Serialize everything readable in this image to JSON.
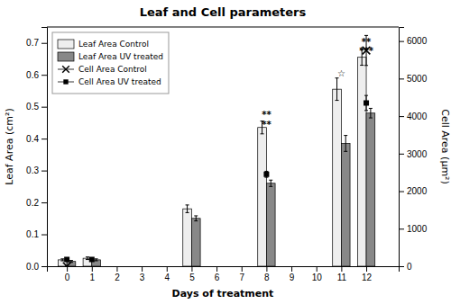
{
  "chart_data": {
    "type": "bar",
    "title": "Leaf and Cell parameters",
    "xlabel": "Days of treatment",
    "ylabel": "Leaf Area (cm²)",
    "y2label": "Cell Area (μm²)",
    "x": [
      0,
      1,
      5,
      8,
      11,
      12
    ],
    "series": [
      {
        "name": "Leaf Area Control",
        "color": "#eeeeee",
        "values": [
          0.02,
          0.025,
          0.18,
          0.435,
          0.555,
          0.655
        ],
        "errors": [
          0.003,
          0.004,
          0.012,
          0.02,
          0.035,
          0.025
        ]
      },
      {
        "name": "Leaf Area UV treated",
        "color": "#888888",
        "values": [
          0.015,
          0.02,
          0.15,
          0.26,
          0.385,
          0.48
        ],
        "errors": [
          0.003,
          0.003,
          0.008,
          0.01,
          0.025,
          0.015
        ]
      },
      {
        "name": "Cell Area Control",
        "type": "scatter",
        "marker": "x",
        "color": "black",
        "axis": "y2",
        "x": [
          0,
          12
        ],
        "values": [
          0,
          5750
        ],
        "errors": [
          0,
          400
        ]
      },
      {
        "name": "Cell Area UV treated",
        "type": "scatter",
        "marker": "square",
        "color": "black",
        "axis": "y2",
        "x": [
          0,
          1,
          8,
          12
        ],
        "values": [
          180,
          180,
          2450,
          4350
        ],
        "errors": [
          30,
          30,
          80,
          200
        ]
      }
    ],
    "xlim": [
      -0.8,
      13.3
    ],
    "xticks": [
      0,
      1,
      2,
      3,
      4,
      5,
      6,
      7,
      8,
      9,
      10,
      11,
      12
    ],
    "ylim": [
      0,
      0.75
    ],
    "yticks": [
      {
        "value": 0,
        "label": "0.0"
      },
      0.1,
      0.2,
      0.3,
      0.4,
      0.5,
      0.6,
      0.7
    ],
    "y2lim": [
      0,
      6375
    ],
    "y2ticks": [
      0,
      1000,
      2000,
      3000,
      4000,
      5000,
      6000
    ],
    "annotations": [
      {
        "x": 8.0,
        "y": 0.465,
        "text": "**"
      },
      {
        "x": 8.0,
        "y": 0.435,
        "text": "**"
      },
      {
        "x": 11.0,
        "y": 0.595,
        "text": "☆"
      },
      {
        "x": 12.0,
        "y": 0.695,
        "text": "**"
      },
      {
        "x": 12.0,
        "y": 0.665,
        "text": "***"
      }
    ],
    "legend": "upper left"
  }
}
